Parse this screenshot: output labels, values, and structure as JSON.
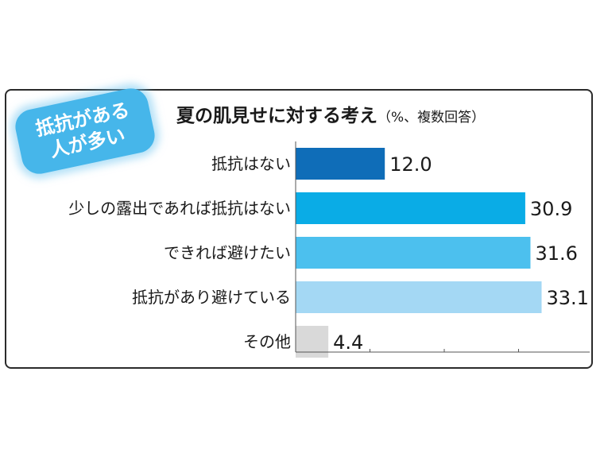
{
  "badge": {
    "line1": "抵抗がある",
    "line2": "人が多い"
  },
  "title": "夏の肌見せに対する考え",
  "title_note": "（%、複数回答）",
  "chart_data": {
    "type": "bar",
    "orientation": "horizontal",
    "title": "夏の肌見せに対する考え",
    "unit": "%、複数回答",
    "categories": [
      "抵抗はない",
      "少しの露出であれば抵抗はない",
      "できれば避けたい",
      "抵抗があり避けている",
      "その他"
    ],
    "values": [
      12.0,
      30.9,
      31.6,
      33.1,
      4.4
    ],
    "value_labels": [
      "12.0",
      "30.9",
      "31.6",
      "33.1",
      "4.4"
    ],
    "colors": [
      "#0f6db8",
      "#0aace6",
      "#4cc0ee",
      "#a4d8f4",
      "#d9d9d9"
    ],
    "xlim": [
      0,
      40
    ],
    "grid": false
  }
}
